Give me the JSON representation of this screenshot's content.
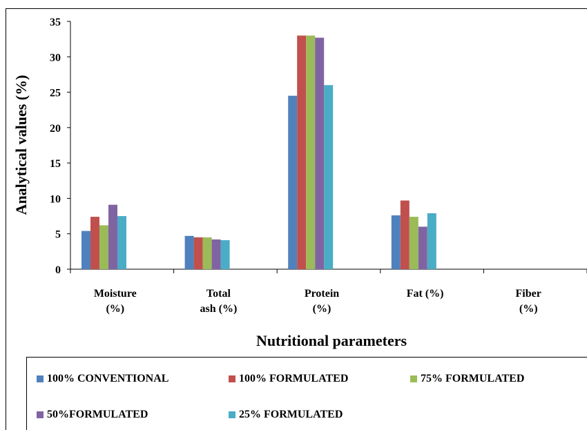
{
  "chart_data": {
    "type": "bar",
    "title": "",
    "xlabel": "Nutritional parameters",
    "ylabel": "Analytical values (%)",
    "ylim": [
      0,
      35
    ],
    "yticks": [
      "0",
      "5",
      "10",
      "15",
      "20",
      "25",
      "30",
      "35"
    ],
    "categories": [
      [
        "Moisture",
        "(%)"
      ],
      [
        "Total",
        "ash (%)"
      ],
      [
        "Protein",
        "(%)"
      ],
      [
        "Fat (%)"
      ],
      [
        "Fiber",
        "(%)"
      ]
    ],
    "series": [
      {
        "name": "100% CONVENTIONAL",
        "color": "#4F81BD",
        "values": [
          5.4,
          4.7,
          24.5,
          7.6,
          0
        ]
      },
      {
        "name": "100% FORMULATED",
        "color": "#C0504D",
        "values": [
          7.4,
          4.5,
          33.0,
          9.7,
          0
        ]
      },
      {
        "name": "75% FORMULATED",
        "color": "#9BBB59",
        "values": [
          6.2,
          4.5,
          33.0,
          7.4,
          0
        ]
      },
      {
        "name": "50%FORMULATED",
        "color": "#8064A2",
        "values": [
          9.1,
          4.2,
          32.7,
          6.0,
          0
        ]
      },
      {
        "name": "25% FORMULATED",
        "color": "#4BACC6",
        "values": [
          7.5,
          4.1,
          26.0,
          7.9,
          0
        ]
      }
    ],
    "grid": false,
    "legend": "bottom"
  }
}
